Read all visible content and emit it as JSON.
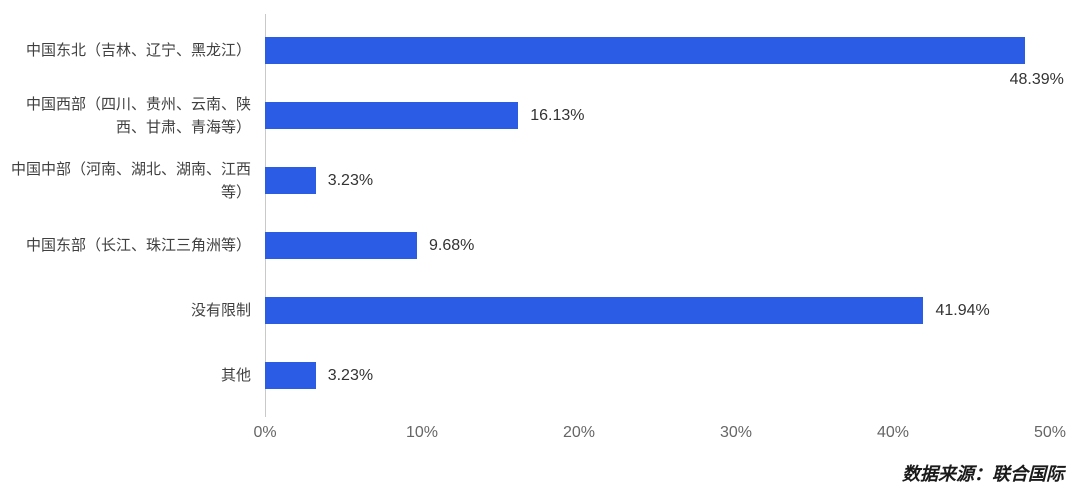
{
  "chart_data": {
    "type": "bar",
    "orientation": "horizontal",
    "categories": [
      "中国东北（吉林、辽宁、黑龙江）",
      "中国西部（四川、贵州、云南、陕西、甘肃、青海等）",
      "中国中部（河南、湖北、湖南、江西等）",
      "中国东部（长江、珠江三角洲等）",
      "没有限制",
      "其他"
    ],
    "values": [
      48.39,
      16.13,
      3.23,
      9.68,
      41.94,
      3.23
    ],
    "value_labels": [
      "48.39%",
      "16.13%",
      "3.23%",
      "9.68%",
      "41.94%",
      "3.23%"
    ],
    "xlim": [
      0,
      50
    ],
    "x_ticks": [
      "0%",
      "10%",
      "20%",
      "30%",
      "40%",
      "50%"
    ],
    "x_tick_values": [
      0,
      10,
      20,
      30,
      40,
      50
    ],
    "grid": false,
    "legend": "none",
    "bar_color": "#2a5ce6",
    "axis_color": "#c9c9c9",
    "source_note": "数据来源：联合国际"
  }
}
